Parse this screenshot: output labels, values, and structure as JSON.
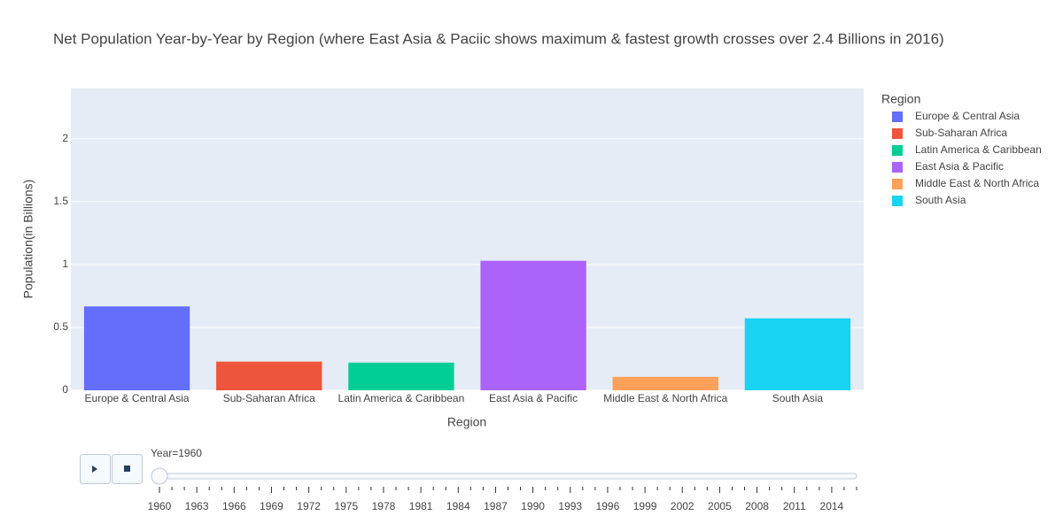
{
  "chart_data": {
    "type": "bar",
    "title": "Net Population Year-by-Year by Region (where East Asia & Paciic shows maximum & fastest growth crosses over 2.4 Billions in 2016)",
    "x_label": "Region",
    "y_label": "Population(in Billions)",
    "legend_title": "Region",
    "categories": [
      "Europe & Central Asia",
      "Sub-Saharan Africa",
      "Latin America & Caribbean",
      "East Asia & Pacific",
      "Middle East & North Africa",
      "South Asia"
    ],
    "values": [
      0.667,
      0.228,
      0.22,
      1.03,
      0.107,
      0.572
    ],
    "colors": [
      "#636efa",
      "#ef553b",
      "#00cc96",
      "#ab63fa",
      "#ffa15a",
      "#19d3f3"
    ],
    "ylim": [
      0,
      2.4
    ],
    "yticks": [
      0,
      0.5,
      1,
      1.5,
      2
    ],
    "grid": true,
    "slider": {
      "label": "Year=1960",
      "steps": [
        1960,
        null,
        null,
        1963,
        null,
        null,
        1966,
        null,
        null,
        1969,
        null,
        null,
        1972,
        null,
        null,
        1975,
        null,
        null,
        1978,
        null,
        null,
        1981,
        null,
        null,
        1984,
        null,
        null,
        1987,
        null,
        null,
        1990,
        null,
        null,
        1993,
        null,
        null,
        1996,
        null,
        null,
        1999,
        null,
        null,
        2002,
        null,
        null,
        2005,
        null,
        null,
        2008,
        null,
        null,
        2011,
        null,
        null,
        2014,
        null,
        null
      ]
    }
  }
}
